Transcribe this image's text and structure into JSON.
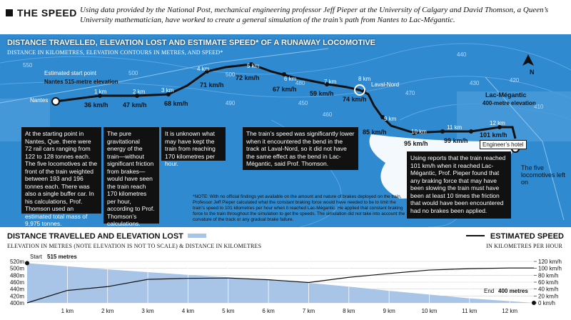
{
  "header": {
    "title": "THE SPEED",
    "intro": "Using data provided by the National Post, mechanical engineering professor Jeff Pieper at the University of Calgary and David Thomson, a Queen’s University mathematician, have worked to create a general simulation of the train’s path from Nantes to Lac-Mégantic."
  },
  "map": {
    "title": "DISTANCE TRAVELLED, ELEVATION LOST AND ESTIMATE SPEED* OF A RUNAWAY LOCOMOTIVE",
    "subtitle": "DISTANCE IN KILOMETRES, ELEVATION CONTOURS IN METRES, AND SPEED*",
    "places": {
      "nantes": "Nantes",
      "start": "Estimated start point",
      "start_elev": "Nantes 515-metre elevation",
      "laval": "Laval-Nord",
      "lac": "Lac-Mégantic",
      "lac_elev": "400-metre elevation",
      "hotel": "Engineer’s hotel",
      "locos": "The five locomotives left on"
    },
    "contours": [
      "550",
      "500",
      "500",
      "490",
      "450",
      "480",
      "470",
      "460",
      "450",
      "440",
      "430",
      "420",
      "410"
    ],
    "route_points": [
      {
        "km": "1 km",
        "speed": "36 km/h"
      },
      {
        "km": "2 km",
        "speed": "47 km/h"
      },
      {
        "km": "3 km",
        "speed": "68 km/h"
      },
      {
        "km": "4 km",
        "speed": "71 km/h"
      },
      {
        "km": "5 km",
        "speed": "72 km/h"
      },
      {
        "km": "6 km",
        "speed": "67 km/h"
      },
      {
        "km": "7 km",
        "speed": "59 km/h"
      },
      {
        "km": "8 km",
        "speed": "74 km/h"
      },
      {
        "km": "9 km",
        "speed": "85 km/h"
      },
      {
        "km": "10 km",
        "speed": "95 km/h"
      },
      {
        "km": "11 km",
        "speed": "99 km/h"
      },
      {
        "km": "12 km",
        "speed": "101 km/h"
      }
    ],
    "notes": [
      "At the starting point in Nantes, Que. there were 72 rail cars ranging from 122 to 128 tonnes each. The five locomotives at the front of the train weighted between 193 and 196 tonnes each. There was also a single buffer car. In his calculations, Prof. Thomson used an estimated total mass of 9,975 tonnes.",
      "The pure gravitational energy of the train—without significant friction from brakes— would have seen the train reach 170 kilometres per hour, according to Prof. Thomson’s calculations.",
      "It is unknown what may have kept the train from reaching 170 kilometres per hour.",
      "The train’s speed was significantly lower when it encountered the bend in the track at Laval-Nord, so it did not have the same effect as the bend in Lac-Mégantic, said Prof. Thomson.",
      "Using reports that the train reached 101 km/h when it reached Lac-Mégantic, Prof. Pieper found that any braking force that may have been slowing the train must have been at least 10 times the friction that would have been encountered had no brakes been applied."
    ],
    "footnote": "*NOTE: With no official findings yet available on the amount and nature of brakes deployed on the train, Professor Jeff Pieper calculated what the constant braking force would have needed to be to limit the train’s speed to 101 kilometres per hour when it reached Lac-Mégantic. He applied that constant braking force to the train throughout the simulation to get the speeds. The simulation did not take into account the curvature of the track or any gradual brake failure.",
    "compass": "N"
  },
  "chart_header": {
    "left_title": "DISTANCE TRAVELLED AND ELEVATION LOST",
    "left_sub": "ELEVATION IN METRES (NOTE ELEVATION IS NOT TO SCALE) & DISTANCE IN KILOMETRES",
    "right_title": "ESTIMATED SPEED",
    "right_sub": "IN KILOMETRES PER HOUR"
  },
  "chart_data": {
    "type": "area",
    "x": [
      0,
      1,
      2,
      3,
      4,
      5,
      6,
      7,
      8,
      9,
      10,
      11,
      12,
      12.6
    ],
    "xticks": [
      "1 km",
      "2 km",
      "3 km",
      "4 km",
      "5 km",
      "6 km",
      "7 km",
      "8 km",
      "9 km",
      "10 km",
      "11 km",
      "12 km"
    ],
    "xlim": [
      0,
      12.6
    ],
    "series": [
      {
        "name": "Elevation",
        "axis": "left",
        "values": [
          515,
          506,
          497,
          489,
          481,
          474,
          466,
          458,
          447,
          435,
          424,
          413,
          405,
          400
        ],
        "color": "#a8c4e6"
      },
      {
        "name": "Speed",
        "axis": "right",
        "values": [
          0,
          36,
          47,
          68,
          71,
          72,
          67,
          59,
          74,
          85,
          95,
          99,
          101,
          101
        ],
        "color": "#111111"
      }
    ],
    "left_ticks": [
      "520m",
      "500m",
      "480m",
      "460m",
      "440m",
      "420m",
      "400m"
    ],
    "left_ylim": [
      400,
      520
    ],
    "right_ticks": [
      "120 km/h",
      "100 km/h",
      "80 km/h",
      "60 km/h",
      "40 km/h",
      "20 km/h",
      "0 km/h"
    ],
    "right_ylim": [
      0,
      120
    ],
    "annotations": {
      "start_label": "Start",
      "start_value": "515 metres",
      "end_label": "End",
      "end_value": "400 metres"
    },
    "grid": true
  }
}
